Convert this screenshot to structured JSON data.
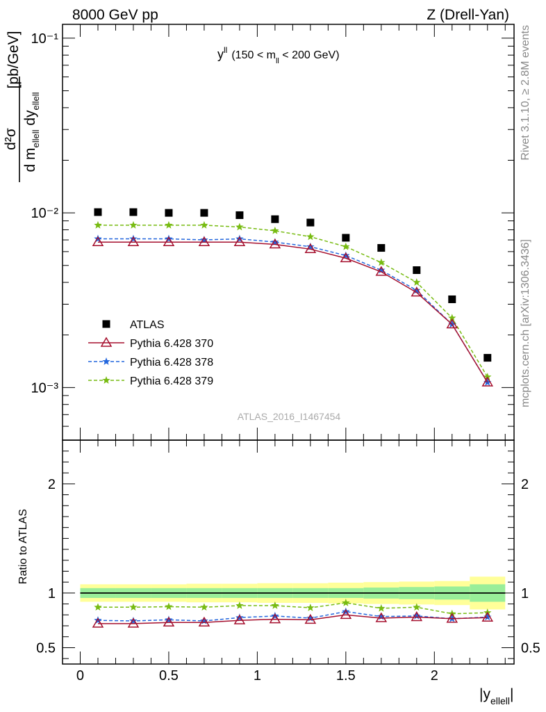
{
  "header": {
    "left": "8000 GeV pp",
    "right": "Z (Drell-Yan)"
  },
  "side": {
    "rivet": "Rivet 3.1.10, ≥ 2.8M events",
    "mcplots": "mcplots.cern.ch [arXiv:1306.3436]"
  },
  "chart_data": [
    {
      "type": "scatter",
      "title": "y",
      "title_sup": "ll",
      "title_cut_pre": "(150 < m",
      "title_cut_sub": "ll",
      "title_cut_post": " < 200 GeV)",
      "ylabel": {
        "num": "d²σ",
        "den_pre": "d m",
        "den_sub1": "ellell",
        "den_mid": " dy",
        "den_sub2": "ellell",
        "unit": "[pb/GeV]"
      },
      "yscale": "log",
      "ylim": [
        0.0005,
        0.12
      ],
      "xlim": [
        -0.1,
        2.45
      ],
      "yticks": [
        "10⁻¹",
        "10⁻²",
        "10⁻³"
      ],
      "watermark": "ATLAS_2016_I1467454",
      "x": [
        0.1,
        0.3,
        0.5,
        0.7,
        0.9,
        1.1,
        1.3,
        1.5,
        1.7,
        1.9,
        2.1,
        2.3
      ],
      "series": [
        {
          "name": "ATLAS",
          "color": "#000000",
          "marker": "square",
          "line": "none",
          "values": [
            0.0101,
            0.0101,
            0.01,
            0.01,
            0.0097,
            0.0092,
            0.0088,
            0.0072,
            0.0063,
            0.0047,
            0.0032,
            0.00148
          ]
        },
        {
          "name": "Pythia 6.428 370",
          "color": "#a50f2d",
          "marker": "triangle",
          "line": "solid",
          "values": [
            0.0068,
            0.0068,
            0.0068,
            0.0068,
            0.0068,
            0.0066,
            0.0062,
            0.0055,
            0.0046,
            0.0035,
            0.0023,
            0.00107
          ]
        },
        {
          "name": "Pythia 6.428 378",
          "color": "#2266dd",
          "marker": "star",
          "line": "dashed",
          "values": [
            0.0071,
            0.0071,
            0.0071,
            0.007,
            0.0071,
            0.0068,
            0.0064,
            0.0057,
            0.0047,
            0.0036,
            0.0023,
            0.00107
          ]
        },
        {
          "name": "Pythia 6.428 379",
          "color": "#77bb11",
          "marker": "star",
          "line": "dashed",
          "values": [
            0.0085,
            0.0085,
            0.0085,
            0.0085,
            0.0083,
            0.0079,
            0.0073,
            0.0064,
            0.0052,
            0.004,
            0.0025,
            0.00115
          ]
        }
      ]
    },
    {
      "type": "scatter",
      "ylabel": "Ratio to ATLAS",
      "xlabel_pre": "|y",
      "xlabel_sub": "ellell",
      "xlabel_post": "|",
      "ylim": [
        0.35,
        2.4
      ],
      "xlim": [
        -0.1,
        2.45
      ],
      "xticks": [
        "0",
        "0.5",
        "1",
        "1.5",
        "2"
      ],
      "yticks": [
        "2",
        "1",
        "0.5"
      ],
      "band_edges": [
        0.0,
        0.2,
        0.4,
        0.6,
        0.8,
        1.0,
        1.2,
        1.4,
        1.6,
        1.8,
        2.0,
        2.2,
        2.4
      ],
      "band_inner": [
        0.045,
        0.045,
        0.045,
        0.045,
        0.045,
        0.045,
        0.045,
        0.045,
        0.05,
        0.055,
        0.06,
        0.08
      ],
      "band_outer": [
        0.08,
        0.08,
        0.08,
        0.085,
        0.085,
        0.09,
        0.09,
        0.095,
        0.1,
        0.105,
        0.11,
        0.15
      ],
      "x": [
        0.1,
        0.3,
        0.5,
        0.7,
        0.9,
        1.1,
        1.3,
        1.5,
        1.7,
        1.9,
        2.1,
        2.3
      ],
      "series": [
        {
          "name": "Pythia 6.428 370",
          "color": "#a50f2d",
          "marker": "triangle",
          "line": "solid",
          "values": [
            0.72,
            0.72,
            0.73,
            0.73,
            0.75,
            0.76,
            0.755,
            0.8,
            0.77,
            0.78,
            0.765,
            0.775
          ]
        },
        {
          "name": "Pythia 6.428 378",
          "color": "#2266dd",
          "marker": "star",
          "line": "dashed",
          "values": [
            0.75,
            0.745,
            0.755,
            0.745,
            0.775,
            0.79,
            0.77,
            0.83,
            0.785,
            0.79,
            0.765,
            0.78
          ]
        },
        {
          "name": "Pythia 6.428 379",
          "color": "#77bb11",
          "marker": "star",
          "line": "dashed",
          "values": [
            0.87,
            0.87,
            0.875,
            0.87,
            0.885,
            0.885,
            0.865,
            0.91,
            0.86,
            0.87,
            0.81,
            0.82
          ]
        }
      ]
    }
  ]
}
